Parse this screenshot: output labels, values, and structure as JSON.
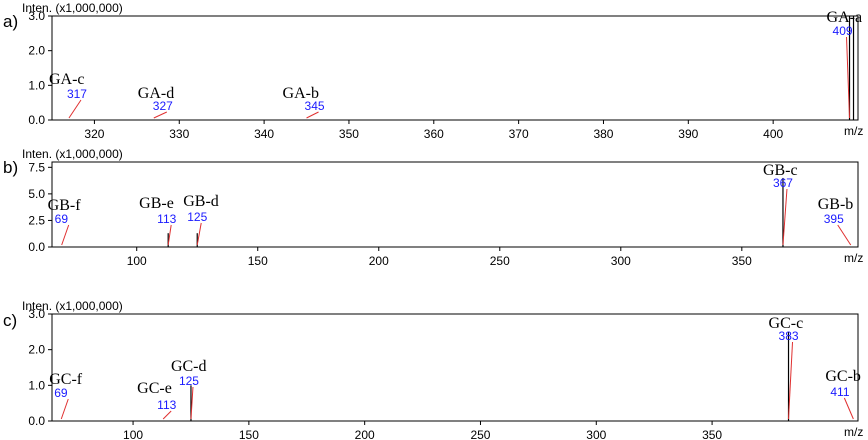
{
  "chart_data": [
    {
      "type": "bar",
      "panel_label": "a)",
      "ylabel": "Inten. (x1,000,000)",
      "xlabel": "m/z",
      "xlim": [
        315,
        410
      ],
      "ylim": [
        0,
        3.0
      ],
      "yticks": [
        "0.0",
        "1.0",
        "2.0",
        "3.0"
      ],
      "xticks": [
        "320",
        "330",
        "340",
        "350",
        "360",
        "370",
        "380",
        "390",
        "400"
      ],
      "xtick_values": [
        320,
        330,
        340,
        350,
        360,
        370,
        380,
        390,
        400
      ],
      "ytick_values": [
        0,
        1,
        2,
        3
      ],
      "peaks": [
        {
          "name": "GA-c",
          "mz": 317,
          "intensity": 0.0,
          "edge": false
        },
        {
          "name": "GA-d",
          "mz": 327,
          "intensity": 0.0,
          "edge": false
        },
        {
          "name": "GA-b",
          "mz": 345,
          "intensity": 0.0,
          "edge": false
        },
        {
          "name": "GA-a",
          "mz": 409,
          "intensity": 3.0,
          "edge": true
        }
      ]
    },
    {
      "type": "bar",
      "panel_label": "b)",
      "ylabel": "Inten. (x1,000,000)",
      "xlabel": "m/z",
      "xlim": [
        65,
        398
      ],
      "ylim": [
        0,
        8.0
      ],
      "yticks": [
        "0.0",
        "2.5",
        "5.0",
        "7.5"
      ],
      "xticks": [
        "100",
        "150",
        "200",
        "250",
        "300",
        "350"
      ],
      "xtick_values": [
        100,
        150,
        200,
        250,
        300,
        350
      ],
      "ytick_values": [
        0,
        2.5,
        5,
        7.5
      ],
      "peaks": [
        {
          "name": "GB-f",
          "mz": 69,
          "intensity": 0.0,
          "edge": false
        },
        {
          "name": "GB-e",
          "mz": 113,
          "intensity": 1.3,
          "edge": false
        },
        {
          "name": "GB-d",
          "mz": 125,
          "intensity": 1.3,
          "edge": false
        },
        {
          "name": "GB-c",
          "mz": 367,
          "intensity": 6.5,
          "edge": false
        },
        {
          "name": "GB-b",
          "mz": 395,
          "intensity": 0.0,
          "edge": false
        }
      ]
    },
    {
      "type": "bar",
      "panel_label": "c)",
      "ylabel": "Inten. (x1,000,000)",
      "xlabel": "m/z",
      "xlim": [
        65,
        413
      ],
      "ylim": [
        0,
        3.0
      ],
      "yticks": [
        "0.0",
        "1.0",
        "2.0",
        "3.0"
      ],
      "xticks": [
        "100",
        "150",
        "200",
        "250",
        "300",
        "350"
      ],
      "xtick_values": [
        100,
        150,
        200,
        250,
        300,
        350
      ],
      "ytick_values": [
        0,
        1,
        2,
        3
      ],
      "peaks": [
        {
          "name": "GC-f",
          "mz": 69,
          "intensity": 0.0,
          "edge": false
        },
        {
          "name": "GC-e",
          "mz": 113,
          "intensity": 0.0,
          "edge": false
        },
        {
          "name": "GC-d",
          "mz": 125,
          "intensity": 1.0,
          "edge": false
        },
        {
          "name": "GC-c",
          "mz": 383,
          "intensity": 2.5,
          "edge": false
        },
        {
          "name": "GC-b",
          "mz": 411,
          "intensity": 0.0,
          "edge": false
        }
      ]
    }
  ]
}
